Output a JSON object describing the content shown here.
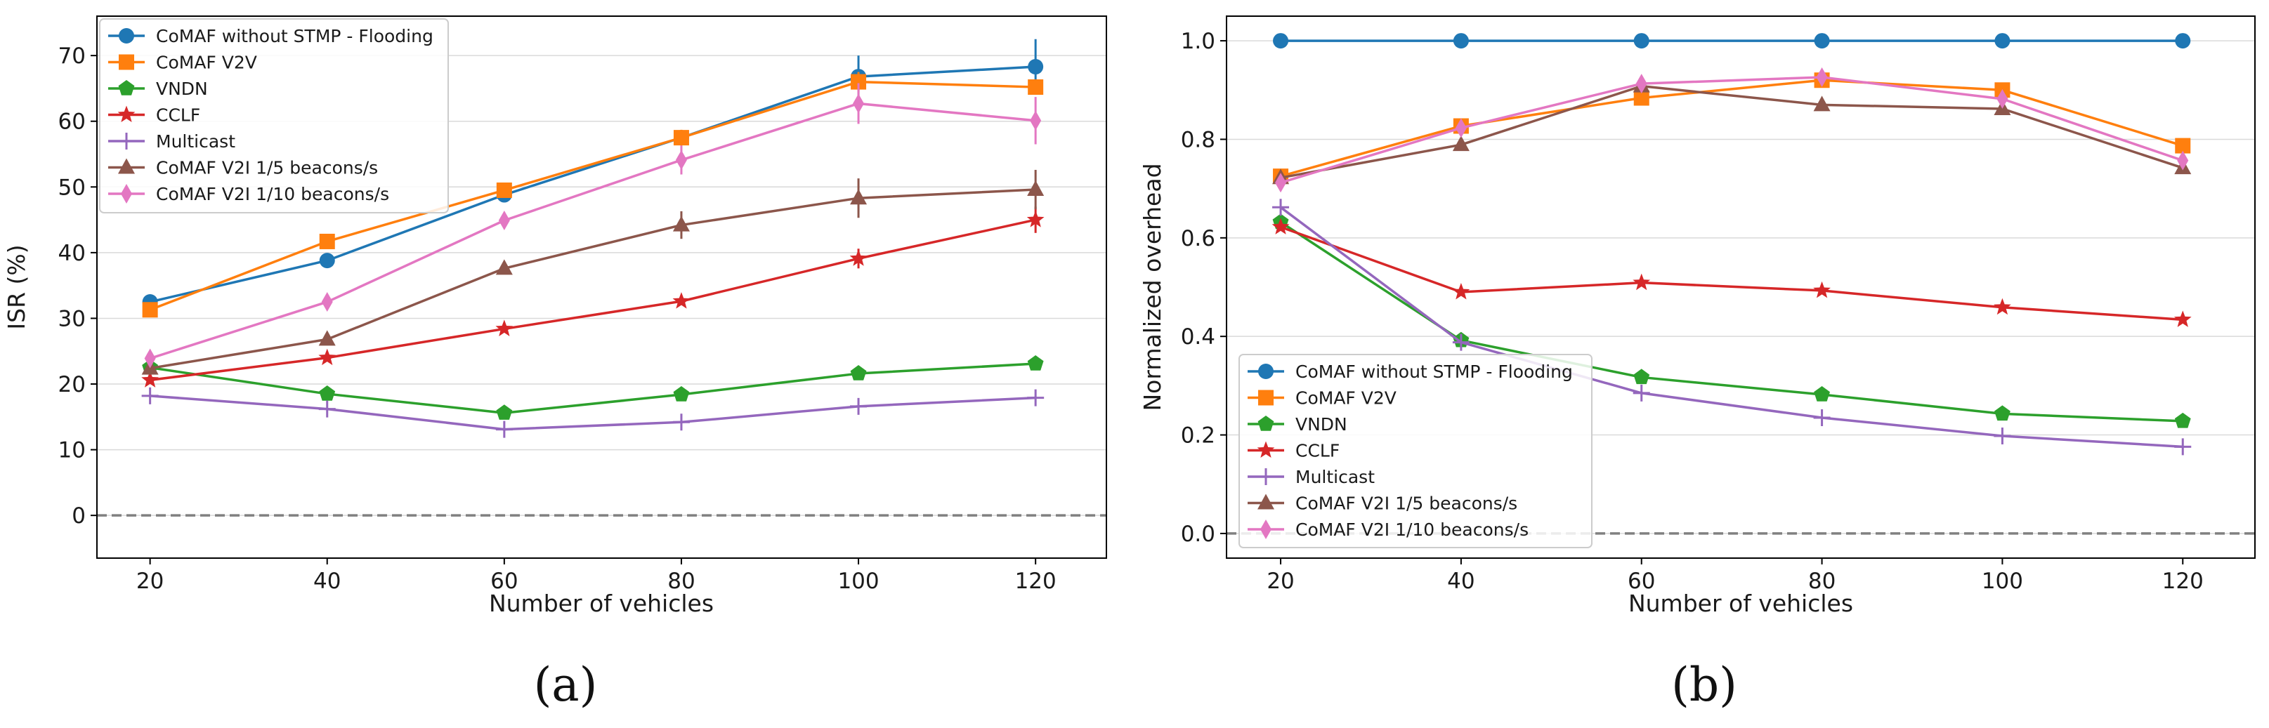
{
  "chart_data": [
    {
      "type": "line",
      "panel_label": "(a)",
      "xlabel": "Number of vehicles",
      "ylabel": "ISR (%)",
      "x": [
        20,
        40,
        60,
        80,
        100,
        120
      ],
      "xlim": [
        14,
        128
      ],
      "ylim": [
        -6.5,
        76
      ],
      "yticks": [
        0,
        10,
        20,
        30,
        40,
        50,
        60,
        70
      ],
      "ytick_labels": [
        "0",
        "10",
        "20",
        "30",
        "40",
        "50",
        "60",
        "70"
      ],
      "xticks": [
        20,
        40,
        60,
        80,
        100,
        120
      ],
      "xtick_labels": [
        "20",
        "40",
        "60",
        "80",
        "100",
        "120"
      ],
      "grid": "horizontal",
      "reference_line": 0,
      "legend_position": "top-left",
      "series": [
        {
          "name": "CoMAF without STMP - Flooding",
          "color": "#1f77b4",
          "marker": "circle",
          "values": [
            32.5,
            38.8,
            48.8,
            57.5,
            66.8,
            68.3
          ],
          "errors": [
            0,
            0,
            0,
            0,
            3.2,
            4.2
          ]
        },
        {
          "name": "CoMAF V2V",
          "color": "#ff7f0e",
          "marker": "square",
          "values": [
            31.3,
            41.7,
            49.5,
            57.5,
            66.0,
            65.2
          ],
          "errors": [
            0,
            0,
            0,
            1.2,
            1.5,
            0
          ]
        },
        {
          "name": "VNDN",
          "color": "#2ca02c",
          "marker": "pentagon",
          "values": [
            22.5,
            18.5,
            15.6,
            18.4,
            21.6,
            23.1
          ],
          "errors": [
            0,
            0,
            0,
            0,
            0,
            0
          ]
        },
        {
          "name": "CCLF",
          "color": "#d62728",
          "marker": "star",
          "values": [
            20.6,
            24.0,
            28.4,
            32.6,
            39.1,
            45.0
          ],
          "errors": [
            0,
            0,
            0,
            0,
            1.5,
            2.0
          ]
        },
        {
          "name": "Multicast",
          "color": "#9467bd",
          "marker": "plus",
          "values": [
            18.2,
            16.2,
            13.1,
            14.2,
            16.6,
            17.9
          ],
          "errors": [
            0,
            0,
            0,
            0,
            0,
            0
          ]
        },
        {
          "name": "CoMAF V2I 1/5 beacons/s",
          "color": "#8c564b",
          "marker": "triangle",
          "values": [
            22.4,
            26.8,
            37.6,
            44.2,
            48.3,
            49.6
          ],
          "errors": [
            0,
            0,
            0,
            2.1,
            3.0,
            3.0
          ]
        },
        {
          "name": "CoMAF V2I 1/10 beacons/s",
          "color": "#e377c2",
          "marker": "diamond",
          "values": [
            23.9,
            32.5,
            44.9,
            54.1,
            62.7,
            60.1
          ],
          "errors": [
            0,
            0,
            0,
            2.2,
            3.1,
            3.6
          ]
        }
      ]
    },
    {
      "type": "line",
      "panel_label": "(b)",
      "xlabel": "Number of vehicles",
      "ylabel": "Normalized overhead",
      "x": [
        20,
        40,
        60,
        80,
        100,
        120
      ],
      "xlim": [
        14,
        128
      ],
      "ylim": [
        -0.05,
        1.05
      ],
      "yticks": [
        0,
        0.2,
        0.4,
        0.6,
        0.8,
        1.0
      ],
      "ytick_labels": [
        "0.0",
        "0.2",
        "0.4",
        "0.6",
        "0.8",
        "1.0"
      ],
      "xticks": [
        20,
        40,
        60,
        80,
        100,
        120
      ],
      "xtick_labels": [
        "20",
        "40",
        "60",
        "80",
        "100",
        "120"
      ],
      "grid": "horizontal",
      "reference_line": 0,
      "legend_position": "lower-left",
      "series": [
        {
          "name": "CoMAF without STMP - Flooding",
          "color": "#1f77b4",
          "marker": "circle",
          "values": [
            1.0,
            1.0,
            1.0,
            1.0,
            1.0,
            1.0
          ],
          "errors": [
            0,
            0,
            0,
            0,
            0,
            0
          ]
        },
        {
          "name": "CoMAF V2V",
          "color": "#ff7f0e",
          "marker": "square",
          "values": [
            0.725,
            0.827,
            0.884,
            0.92,
            0.9,
            0.787
          ],
          "errors": [
            0,
            0,
            0,
            0,
            0,
            0
          ]
        },
        {
          "name": "VNDN",
          "color": "#2ca02c",
          "marker": "pentagon",
          "values": [
            0.632,
            0.392,
            0.317,
            0.282,
            0.243,
            0.228
          ],
          "errors": [
            0,
            0,
            0,
            0,
            0,
            0
          ]
        },
        {
          "name": "CCLF",
          "color": "#d62728",
          "marker": "star",
          "values": [
            0.622,
            0.49,
            0.509,
            0.493,
            0.459,
            0.434
          ],
          "errors": [
            0,
            0,
            0,
            0,
            0,
            0
          ]
        },
        {
          "name": "Multicast",
          "color": "#9467bd",
          "marker": "plus",
          "values": [
            0.662,
            0.388,
            0.285,
            0.235,
            0.198,
            0.176
          ],
          "errors": [
            0,
            0,
            0,
            0,
            0,
            0
          ]
        },
        {
          "name": "CoMAF V2I 1/5 beacons/s",
          "color": "#8c564b",
          "marker": "triangle",
          "values": [
            0.722,
            0.789,
            0.908,
            0.87,
            0.862,
            0.742
          ],
          "errors": [
            0,
            0,
            0,
            0,
            0,
            0
          ]
        },
        {
          "name": "CoMAF V2I 1/10 beacons/s",
          "color": "#e377c2",
          "marker": "diamond",
          "values": [
            0.712,
            0.823,
            0.913,
            0.926,
            0.882,
            0.757
          ],
          "errors": [
            0,
            0,
            0,
            0,
            0,
            0
          ]
        }
      ]
    }
  ]
}
